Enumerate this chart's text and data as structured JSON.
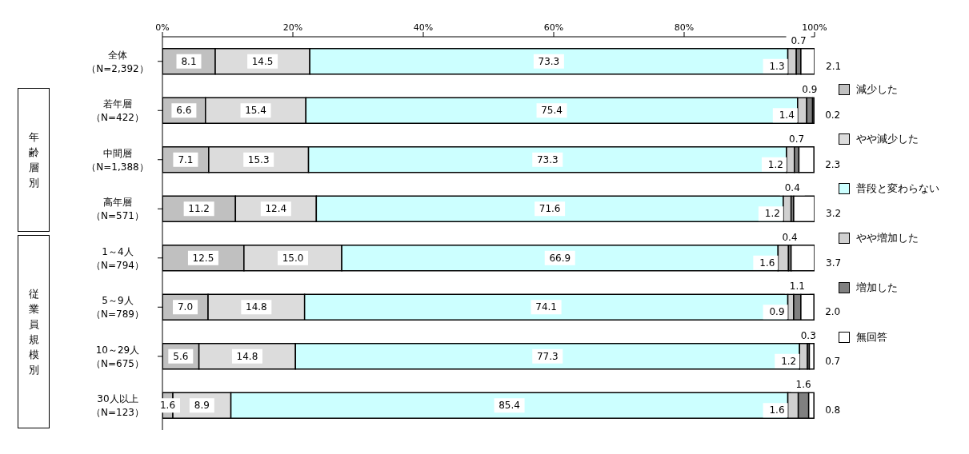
{
  "chart_data": {
    "type": "bar",
    "orientation": "horizontal",
    "stacked": true,
    "categories": [
      "全体（N=2,392）",
      "若年層（N=422）",
      "中間層（N=1,388）",
      "高年層（N=571）",
      "1～4人（N=794）",
      "5～9人（N=789）",
      "10～29人（N=675）",
      "30人以上（N=123）"
    ],
    "series": [
      {
        "name": "減少した",
        "color": "#c0c0c0",
        "values": [
          8.1,
          6.6,
          7.1,
          11.2,
          12.5,
          7.0,
          5.6,
          1.6
        ],
        "value_labels": [
          "8.1",
          "6.6",
          "7.1",
          "11.2",
          "12.5",
          "7.0",
          "5.6",
          "1.6"
        ]
      },
      {
        "name": "やや減少した",
        "color": "#dcdcdc",
        "values": [
          14.5,
          15.4,
          15.3,
          12.4,
          15.0,
          14.8,
          14.8,
          8.9
        ],
        "value_labels": [
          "14.5",
          "15.4",
          "15.3",
          "12.4",
          "15.0",
          "14.8",
          "14.8",
          "8.9"
        ]
      },
      {
        "name": "普段と変わらない",
        "color": "#ccffff",
        "values": [
          73.3,
          75.4,
          73.3,
          71.6,
          66.9,
          74.1,
          77.3,
          85.4
        ],
        "value_labels": [
          "73.3",
          "75.4",
          "73.3",
          "71.6",
          "66.9",
          "74.1",
          "77.3",
          "85.4"
        ]
      },
      {
        "name": "やや増加した",
        "color": "#d0d0d0",
        "values": [
          1.3,
          1.4,
          1.2,
          1.2,
          1.6,
          0.9,
          1.2,
          1.6
        ],
        "value_labels": [
          "1.3",
          "1.4",
          "1.2",
          "1.2",
          "1.6",
          "0.9",
          "1.2",
          "1.6"
        ]
      },
      {
        "name": "増加した",
        "color": "#808080",
        "values": [
          0.7,
          0.9,
          0.7,
          0.4,
          0.4,
          1.1,
          0.3,
          1.6
        ],
        "value_labels": [
          "0.7",
          "0.9",
          "0.7",
          "0.4",
          "0.4",
          "1.1",
          "0.3",
          "1.6"
        ]
      },
      {
        "name": "無回答",
        "color": "#ffffff",
        "values": [
          2.1,
          0.2,
          2.3,
          3.2,
          3.7,
          2.0,
          0.7,
          0.8
        ],
        "value_labels": [
          "2.1",
          "0.2",
          "2.3",
          "3.2",
          "3.7",
          "2.0",
          "0.7",
          "0.8"
        ]
      }
    ],
    "xlim": [
      0,
      100
    ],
    "xticks": [
      {
        "value": 0,
        "label": "0%"
      },
      {
        "value": 20,
        "label": "20%"
      },
      {
        "value": 40,
        "label": "40%"
      },
      {
        "value": 60,
        "label": "60%"
      },
      {
        "value": 80,
        "label": "80%"
      },
      {
        "value": 100,
        "label": "100%"
      }
    ],
    "legend": "right",
    "annotations": [
      "年齢層別",
      "従業員規模別"
    ]
  }
}
